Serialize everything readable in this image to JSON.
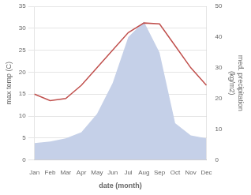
{
  "chart_data": {
    "type": "line",
    "categories": [
      "Jan",
      "Feb",
      "Mar",
      "Apr",
      "May",
      "Jun",
      "Jul",
      "Aug",
      "Sep",
      "Oct",
      "Nov",
      "Dec"
    ],
    "series": [
      {
        "type": "area",
        "axis": "y2",
        "color": "#c5d0e8",
        "values": [
          5.5,
          6.0,
          7.0,
          9.0,
          15.0,
          25.0,
          40.0,
          45.0,
          35.0,
          12.0,
          8.0,
          7.0
        ]
      },
      {
        "type": "line",
        "color": "#c0504d",
        "values": [
          15.0,
          13.5,
          14.0,
          17.0,
          21.0,
          25.0,
          29.0,
          31.2,
          31.0,
          26.0,
          21.0,
          17.0
        ]
      }
    ],
    "xlabel": "date (month)",
    "ylabel": "max temp (C)",
    "y2label": "med. precipitation\n(kg/m2)",
    "ylim": [
      0,
      35
    ],
    "yticks": [
      0,
      5,
      10,
      15,
      20,
      25,
      30,
      35
    ],
    "y2lim": [
      0,
      50
    ],
    "y2ticks": [
      0,
      10,
      20,
      30,
      40,
      50
    ],
    "grid": true
  }
}
